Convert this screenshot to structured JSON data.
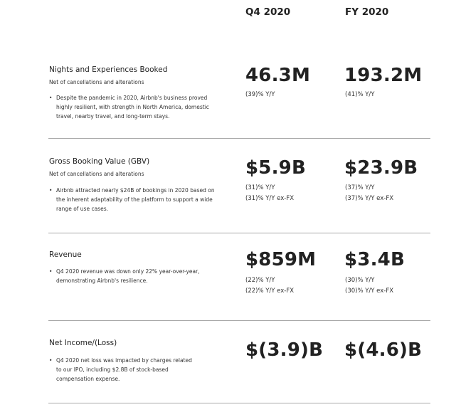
{
  "headers": {
    "q4": "Q4 2020",
    "fy": "FY 2020"
  },
  "rows": [
    {
      "title": "Nights and Experiences Booked",
      "subtitle": "Net of cancellations and alterations",
      "bullet": [
        "Despite the pandemic in 2020, Airbnb's business proved",
        "highly resilient, with strength in North America, domestic",
        "travel, nearby travel, and long-term stays."
      ],
      "q4": {
        "value": "46.3M",
        "notes": [
          "(39)% Y/Y"
        ]
      },
      "fy": {
        "value": "193.2M",
        "notes": [
          "(41)% Y/Y"
        ]
      }
    },
    {
      "title": "Gross Booking Value (GBV)",
      "subtitle": "Net of cancellations and alterations",
      "bullet": [
        "Airbnb attracted nearly $24B of bookings in 2020 based on",
        "the inherent adaptability of the platform to support a wide",
        "range of use cases."
      ],
      "q4": {
        "value": "$5.9B",
        "notes": [
          "(31)% Y/Y",
          "(31)% Y/Y ex-FX"
        ]
      },
      "fy": {
        "value": "$23.9B",
        "notes": [
          "(37)% Y/Y",
          "(37)% Y/Y ex-FX"
        ]
      }
    },
    {
      "title": "Revenue",
      "subtitle": "",
      "bullet": [
        "Q4 2020 revenue was down only 22% year-over-year,",
        "demonstrating Airbnb's resilience."
      ],
      "q4": {
        "value": "$859M",
        "notes": [
          "(22)% Y/Y",
          "(22)% Y/Y ex-FX"
        ]
      },
      "fy": {
        "value": "$3.4B",
        "notes": [
          "(30)% Y/Y",
          "(30)% Y/Y ex-FX"
        ]
      }
    },
    {
      "title": "Net Income/(Loss)",
      "subtitle": "",
      "bullet": [
        "Q4 2020 net loss was impacted by charges related",
        "to our IPO, including $2.8B of stock-based",
        "compensation expense."
      ],
      "q4": {
        "value": "$(3.9)B",
        "notes": []
      },
      "fy": {
        "value": "$(4.6)B",
        "notes": []
      }
    }
  ],
  "bullet_symbol": "•"
}
